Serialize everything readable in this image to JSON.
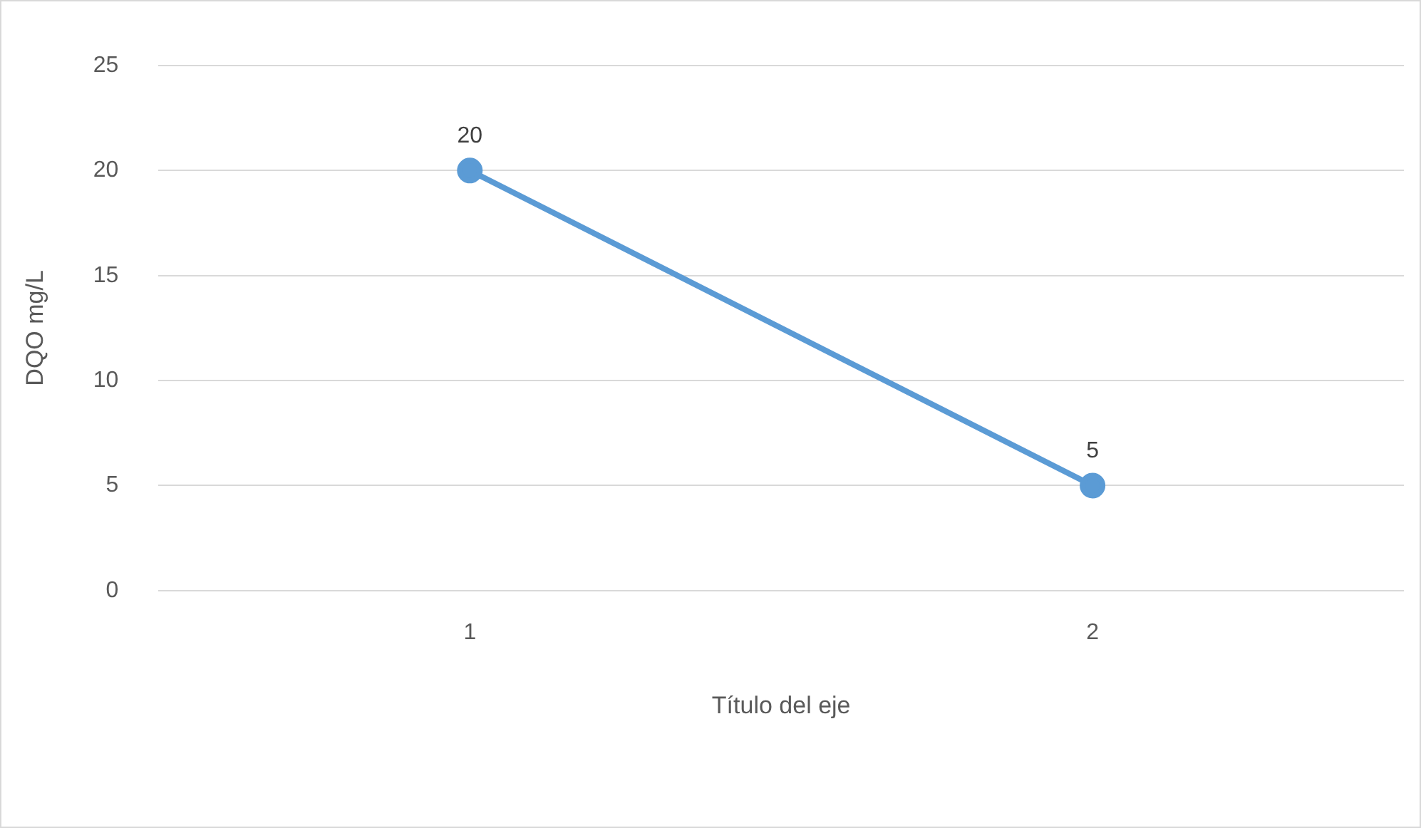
{
  "chart_data": {
    "type": "line",
    "xlabel": "Título del eje",
    "ylabel": "DQO mg/L",
    "categories": [
      "1",
      "2"
    ],
    "series": [
      {
        "color": "#5b9bd5",
        "values": [
          20,
          5
        ]
      }
    ],
    "ylim": [
      0,
      25
    ],
    "yticks": [
      0,
      5,
      10,
      15,
      20,
      25
    ],
    "grid": "y",
    "legend": false,
    "marker": "circle",
    "line_style": "solid",
    "data_labels": true
  }
}
